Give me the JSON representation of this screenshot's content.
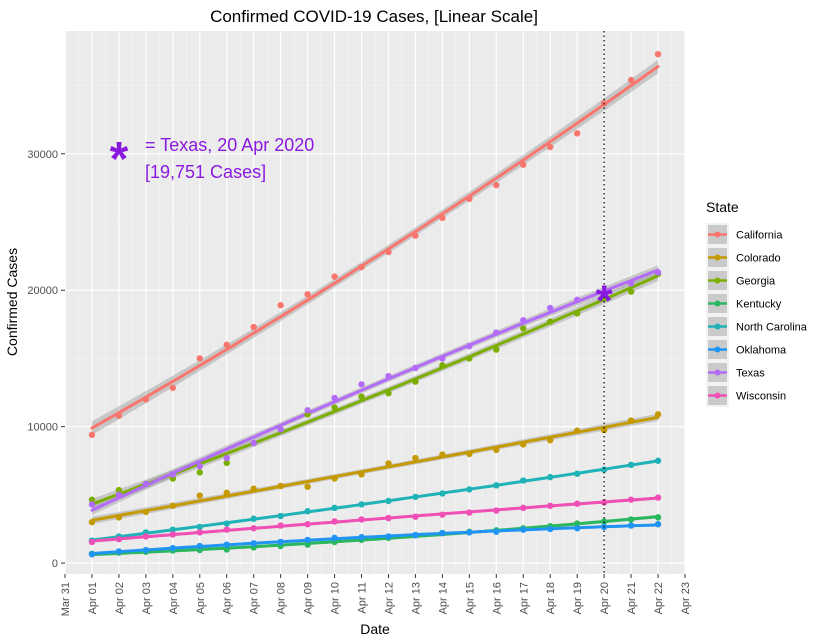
{
  "chart_data": {
    "type": "line",
    "title": "Confirmed COVID-19 Cases, [Linear Scale]",
    "xlabel": "Date",
    "ylabel": "Confirmed Cases",
    "xlim": [
      "2020-03-31",
      "2020-04-23"
    ],
    "ylim": [
      -800,
      39000
    ],
    "x_ticks": [
      "Mar 31",
      "Apr 01",
      "Apr 02",
      "Apr 03",
      "Apr 04",
      "Apr 05",
      "Apr 06",
      "Apr 07",
      "Apr 08",
      "Apr 09",
      "Apr 10",
      "Apr 11",
      "Apr 12",
      "Apr 13",
      "Apr 14",
      "Apr 15",
      "Apr 16",
      "Apr 17",
      "Apr 18",
      "Apr 19",
      "Apr 20",
      "Apr 21",
      "Apr 22",
      "Apr 23"
    ],
    "y_ticks": [
      0,
      10000,
      20000,
      30000
    ],
    "y_tick_labels": [
      "0",
      "10000",
      "20000",
      "30000"
    ],
    "grid": true,
    "legend": {
      "title": "State",
      "position": "right"
    },
    "reference_line": {
      "x": "2020-04-20",
      "style": "dotted"
    },
    "annotation": {
      "marker": "*",
      "line1": "= Texas, 20 Apr 2020",
      "line2": "[19,751 Cases]",
      "point_x": "2020-04-20",
      "point_y": 19751,
      "color": "#8a19e0"
    },
    "x": [
      "2020-04-01",
      "2020-04-02",
      "2020-04-03",
      "2020-04-04",
      "2020-04-05",
      "2020-04-06",
      "2020-04-07",
      "2020-04-08",
      "2020-04-09",
      "2020-04-10",
      "2020-04-11",
      "2020-04-12",
      "2020-04-13",
      "2020-04-14",
      "2020-04-15",
      "2020-04-16",
      "2020-04-17",
      "2020-04-18",
      "2020-04-19",
      "2020-04-20",
      "2020-04-21",
      "2020-04-22"
    ],
    "series": [
      {
        "name": "California",
        "color": "#f8766d",
        "values": [
          9400,
          10800,
          12000,
          12850,
          15000,
          16000,
          17300,
          18900,
          19700,
          21000,
          21700,
          22800,
          24000,
          25300,
          26700,
          27700,
          29200,
          30500,
          31500,
          33700,
          35400,
          37300
        ]
      },
      {
        "name": "Colorado",
        "color": "#c49a00",
        "values": [
          3000,
          3350,
          3750,
          4200,
          4950,
          5150,
          5450,
          5650,
          5600,
          6200,
          6500,
          7300,
          7700,
          7950,
          8000,
          8300,
          8700,
          9000,
          9700,
          9750,
          10450,
          10900
        ]
      },
      {
        "name": "Georgia",
        "color": "#7cae00",
        "values": [
          4650,
          5350,
          5800,
          6200,
          6650,
          7350,
          8800,
          9800,
          10900,
          11400,
          12200,
          12450,
          13300,
          14500,
          15000,
          15650,
          17200,
          17700,
          18300,
          19400,
          19900,
          21200
        ]
      },
      {
        "name": "Kentucky",
        "color": "#29b85e",
        "values": [
          680,
          770,
          830,
          920,
          960,
          1000,
          1150,
          1250,
          1350,
          1550,
          1700,
          1850,
          2050,
          2200,
          2290,
          2400,
          2550,
          2700,
          2900,
          3050,
          3200,
          3350
        ]
      },
      {
        "name": "North Carolina",
        "color": "#1fb3b8",
        "values": [
          1650,
          1950,
          2250,
          2450,
          2650,
          2900,
          3250,
          3450,
          3800,
          4050,
          4300,
          4550,
          4850,
          5100,
          5400,
          5700,
          6050,
          6300,
          6550,
          6850,
          7200,
          7500
        ]
      },
      {
        "name": "Oklahoma",
        "color": "#2094f3",
        "values": [
          650,
          850,
          950,
          1100,
          1250,
          1350,
          1450,
          1550,
          1700,
          1850,
          1900,
          1950,
          2050,
          2200,
          2250,
          2300,
          2450,
          2500,
          2550,
          2650,
          2750,
          2850
        ]
      },
      {
        "name": "Texas",
        "color": "#b36bfa",
        "values": [
          4300,
          5000,
          5800,
          6500,
          7100,
          7700,
          8800,
          9800,
          11200,
          12100,
          13100,
          13700,
          14300,
          15000,
          15900,
          16900,
          17800,
          18700,
          19300,
          19751,
          20500,
          21300
        ]
      },
      {
        "name": "Wisconsin",
        "color": "#f04fb5",
        "values": [
          1550,
          1750,
          1950,
          2100,
          2250,
          2450,
          2550,
          2750,
          2850,
          3050,
          3200,
          3300,
          3400,
          3550,
          3700,
          3850,
          4050,
          4200,
          4350,
          4450,
          4650,
          4800
        ]
      }
    ]
  }
}
